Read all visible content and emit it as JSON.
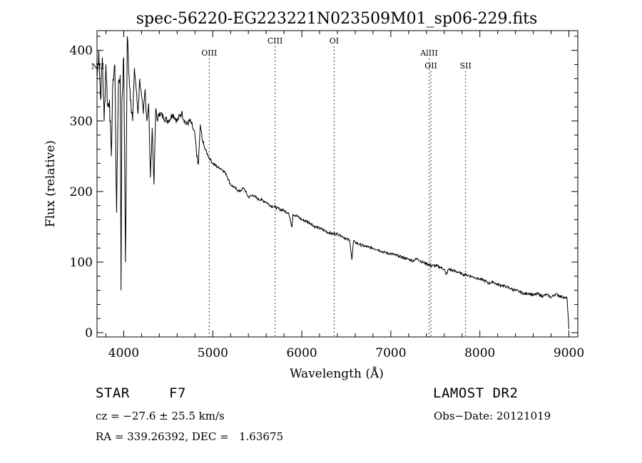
{
  "chart_data": {
    "type": "line",
    "title": "spec-56220-EG223221N023509M01_sp06-229.fits",
    "xlabel": "Wavelength (Å)",
    "ylabel": "Flux (relative)",
    "xlim": [
      3700,
      9100
    ],
    "ylim": [
      -6,
      428
    ],
    "xticks": [
      4000,
      5000,
      6000,
      7000,
      8000,
      9000
    ],
    "yticks": [
      0,
      100,
      200,
      300,
      400
    ],
    "grid": false,
    "series": [
      {
        "x": [
          3700,
          3720,
          3740,
          3760,
          3780,
          3800,
          3820,
          3840,
          3860,
          3880,
          3900,
          3920,
          3940,
          3960,
          3970,
          3980,
          4000,
          4020,
          4040,
          4060,
          4080,
          4100,
          4120,
          4140,
          4160,
          4180,
          4200,
          4220,
          4240,
          4260,
          4280,
          4300,
          4320,
          4340,
          4360,
          4380,
          4400,
          4450,
          4500,
          4550,
          4600,
          4650,
          4700,
          4750,
          4800,
          4820,
          4840,
          4860,
          4880,
          4900,
          4950,
          5000,
          5050,
          5100,
          5150,
          5200,
          5250,
          5300,
          5350,
          5400,
          5450,
          5500,
          5550,
          5600,
          5650,
          5700,
          5750,
          5800,
          5850,
          5890,
          5900,
          5950,
          6000,
          6050,
          6100,
          6150,
          6200,
          6250,
          6300,
          6350,
          6400,
          6450,
          6500,
          6540,
          6563,
          6580,
          6600,
          6650,
          6700,
          6750,
          6800,
          6850,
          6900,
          6950,
          7000,
          7050,
          7100,
          7150,
          7200,
          7250,
          7300,
          7350,
          7400,
          7450,
          7500,
          7550,
          7600,
          7620,
          7650,
          7700,
          7750,
          7800,
          7850,
          7900,
          7950,
          8000,
          8050,
          8100,
          8150,
          8200,
          8250,
          8300,
          8350,
          8400,
          8450,
          8500,
          8550,
          8600,
          8650,
          8700,
          8750,
          8800,
          8850,
          8900,
          8950,
          8980,
          9000
        ],
        "y": [
          360,
          400,
          330,
          390,
          300,
          380,
          320,
          330,
          250,
          360,
          380,
          170,
          355,
          365,
          60,
          330,
          390,
          100,
          420,
          365,
          330,
          300,
          375,
          345,
          310,
          360,
          335,
          310,
          345,
          300,
          325,
          220,
          290,
          210,
          318,
          300,
          312,
          305,
          300,
          310,
          300,
          312,
          295,
          300,
          280,
          250,
          240,
          295,
          275,
          265,
          250,
          240,
          235,
          232,
          225,
          210,
          205,
          200,
          205,
          192,
          195,
          190,
          188,
          185,
          180,
          178,
          175,
          173,
          170,
          150,
          168,
          165,
          160,
          158,
          155,
          150,
          148,
          145,
          142,
          140,
          140,
          137,
          133,
          130,
          103,
          130,
          128,
          125,
          123,
          121,
          120,
          118,
          115,
          113,
          112,
          110,
          108,
          106,
          104,
          102,
          105,
          100,
          98,
          95,
          95,
          93,
          90,
          82,
          90,
          88,
          86,
          83,
          82,
          80,
          78,
          76,
          74,
          70,
          72,
          68,
          67,
          65,
          62,
          60,
          58,
          55,
          56,
          53,
          55,
          52,
          54,
          50,
          55,
          52,
          50,
          48,
          5
        ]
      }
    ],
    "annotations": [
      {
        "label": "NII",
        "x": 3700
      },
      {
        "label": "OIII",
        "x": 4960
      },
      {
        "label": "CIII",
        "x": 5700
      },
      {
        "label": "OI",
        "x": 6363
      },
      {
        "label": "AlIII",
        "x": 7430
      },
      {
        "label": "OII",
        "x": 7450
      },
      {
        "label": "SII",
        "x": 7840
      }
    ]
  },
  "info": {
    "object_class": "STAR",
    "subclass": "F7",
    "survey": "LAMOST DR2",
    "cz": "cz = −27.6 ± 25.5 km/s",
    "obs_date": "Obs−Date: 20121019",
    "coords": "RA = 339.26392, DEC =   1.63675"
  }
}
